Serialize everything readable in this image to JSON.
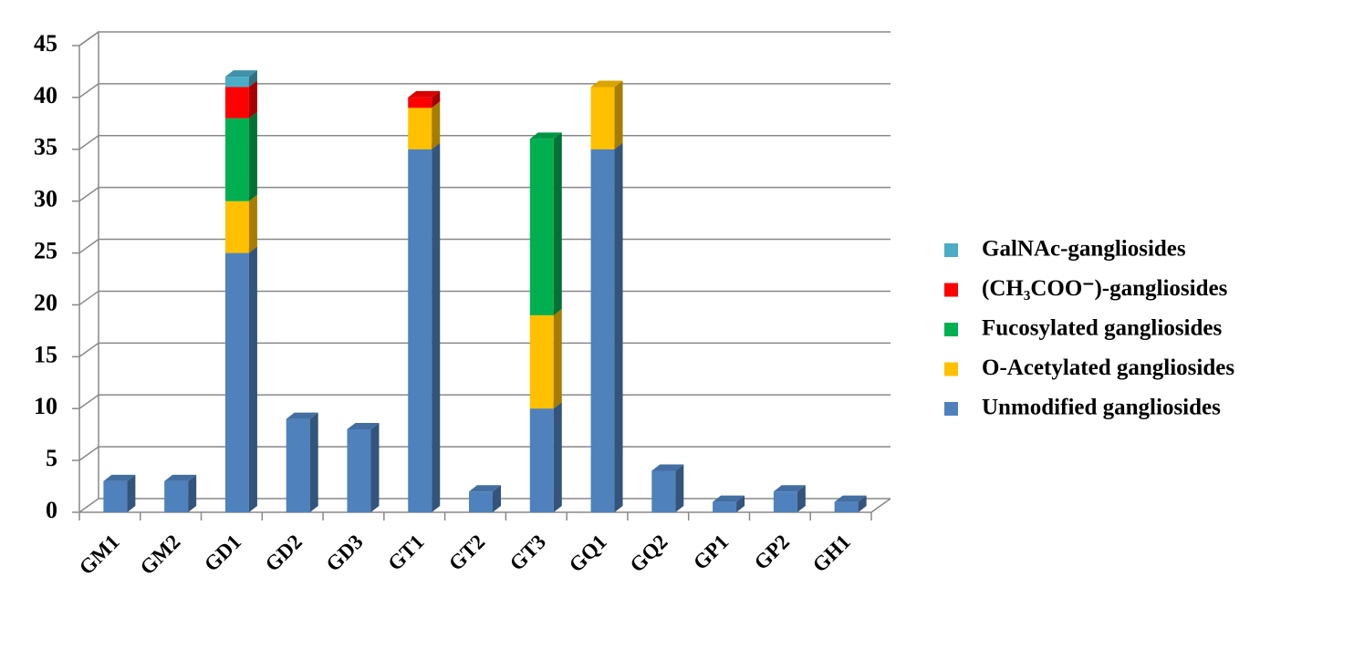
{
  "chart_data": {
    "type": "stacked-bar-3d",
    "categories": [
      "GM1",
      "GM2",
      "GD1",
      "GD2",
      "GD3",
      "GT1",
      "GT2",
      "GT3",
      "GQ1",
      "GQ2",
      "GP1",
      "GP2",
      "GH1"
    ],
    "series": [
      {
        "name": "Unmodified gangliosides",
        "color": "#4f81bd",
        "values": [
          3,
          3,
          25,
          9,
          8,
          35,
          2,
          10,
          35,
          4,
          1,
          2,
          1
        ]
      },
      {
        "name": "O-Acetylated gangliosides",
        "color": "#ffc000",
        "values": [
          0,
          0,
          5,
          0,
          0,
          4,
          0,
          9,
          6,
          0,
          0,
          0,
          0
        ]
      },
      {
        "name": "Fucosylated gangliosides",
        "color": "#00b050",
        "values": [
          0,
          0,
          8,
          0,
          0,
          0,
          0,
          17,
          0,
          0,
          0,
          0,
          0
        ]
      },
      {
        "name": "(CH₃COO⁻)-gangliosides",
        "color": "#ff0000",
        "values": [
          0,
          0,
          3,
          0,
          0,
          1,
          0,
          0,
          0,
          0,
          0,
          0,
          0
        ]
      },
      {
        "name": "GalNAc-gangliosides",
        "color": "#4bacc6",
        "values": [
          0,
          0,
          1,
          0,
          0,
          0,
          0,
          0,
          0,
          0,
          0,
          0,
          0
        ]
      }
    ],
    "ylim": [
      0,
      45
    ],
    "yticks": [
      0,
      5,
      10,
      15,
      20,
      25,
      30,
      35,
      40,
      45
    ],
    "grid": true,
    "legend": "right"
  }
}
